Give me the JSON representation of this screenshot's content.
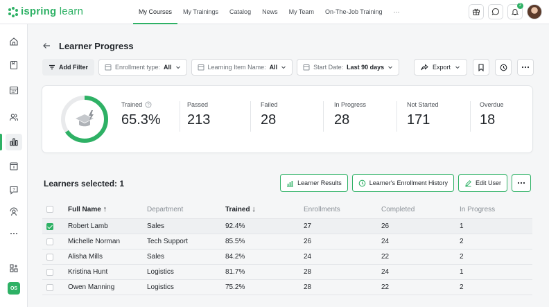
{
  "app": {
    "logo_text_bold": "ispring",
    "logo_text_rest": " learn"
  },
  "topnav": {
    "items": [
      "My Courses",
      "My Trainings",
      "Catalog",
      "News",
      "My Team",
      "On-The-Job Training",
      "···"
    ],
    "active_index": 0,
    "notifications_count": "2"
  },
  "sidebar": {
    "icons": [
      "home-icon",
      "book-icon",
      "calendar-icon",
      "users-icon",
      "reports-icon",
      "catalog-icon",
      "help-icon",
      "team-icon",
      "more-icon",
      "add-widget-icon"
    ],
    "active_icon": "reports-icon",
    "user_initials": "OS"
  },
  "page": {
    "title": "Learner Progress"
  },
  "filters": {
    "add_filter_label": "Add Filter",
    "enrollment": {
      "label": "Enrollment type:",
      "value": "All"
    },
    "learning_item": {
      "label": "Learning Item Name:",
      "value": "All"
    },
    "start_date": {
      "label": "Start Date:",
      "value": "Last 90 days"
    },
    "export_label": "Export"
  },
  "stats": {
    "trained_fraction": 0.653,
    "trained": {
      "label": "Trained",
      "value": "65.3%"
    },
    "passed": {
      "label": "Passed",
      "value": "213"
    },
    "failed": {
      "label": "Failed",
      "value": "28"
    },
    "in_progress": {
      "label": "In Progress",
      "value": "28"
    },
    "not_started": {
      "label": "Not Started",
      "value": "171"
    },
    "overdue": {
      "label": "Overdue",
      "value": "18"
    }
  },
  "learners": {
    "selected_text": "Learners selected: 1",
    "buttons": {
      "results": "Learner Results",
      "history": "Learner's Enrollment History",
      "edit": "Edit User"
    }
  },
  "table": {
    "headers": [
      "Full Name",
      "Department",
      "Trained",
      "Enrollments",
      "Completed",
      "In Progress"
    ],
    "rows": [
      {
        "name": "Robert Lamb",
        "department": "Sales",
        "trained": "92.4%",
        "enrollments": "27",
        "completed": "26",
        "in_progress": "1",
        "checked": true
      },
      {
        "name": "Michelle Norman",
        "department": "Tech Support",
        "trained": "85.5%",
        "enrollments": "26",
        "completed": "24",
        "in_progress": "2",
        "checked": false
      },
      {
        "name": "Alisha Mills",
        "department": "Sales",
        "trained": "84.2%",
        "enrollments": "24",
        "completed": "22",
        "in_progress": "2",
        "checked": false
      },
      {
        "name": "Kristina Hunt",
        "department": "Logistics",
        "trained": "81.7%",
        "enrollments": "28",
        "completed": "24",
        "in_progress": "1",
        "checked": false
      },
      {
        "name": "Owen Manning",
        "department": "Logistics",
        "trained": "75.2%",
        "enrollments": "28",
        "completed": "22",
        "in_progress": "2",
        "checked": false
      }
    ]
  },
  "colors": {
    "accent": "#2eb165",
    "track": "#e9eaec"
  }
}
